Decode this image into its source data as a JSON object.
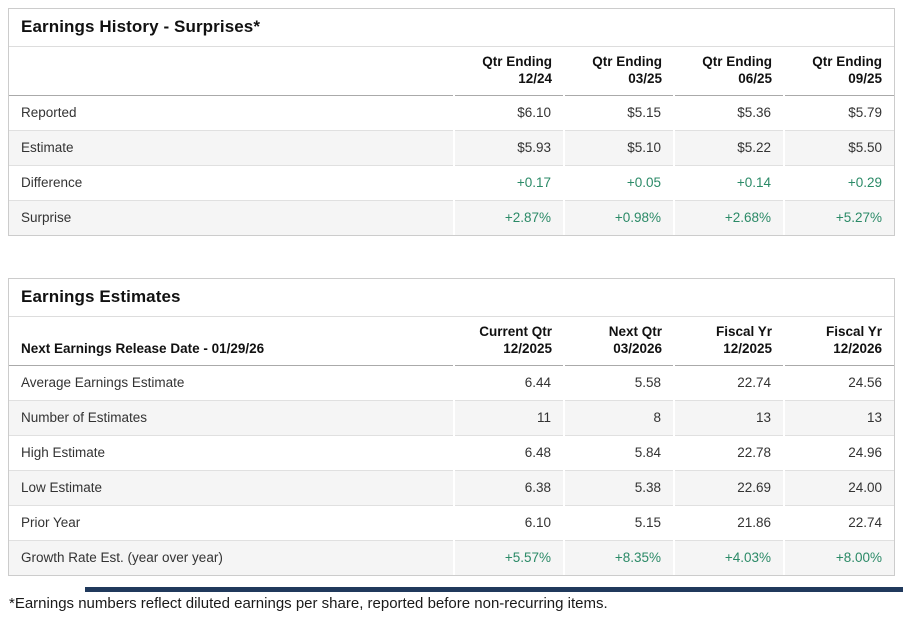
{
  "colors": {
    "positive_green": "#2b8a67",
    "row_alt_background": "#f5f5f5",
    "card_border": "#cccccc"
  },
  "surprises": {
    "title": "Earnings History - Surprises*",
    "columns": [
      {
        "line1": "Qtr Ending",
        "line2": "12/24"
      },
      {
        "line1": "Qtr Ending",
        "line2": "03/25"
      },
      {
        "line1": "Qtr Ending",
        "line2": "06/25"
      },
      {
        "line1": "Qtr Ending",
        "line2": "09/25"
      }
    ],
    "rows": [
      {
        "label": "Reported",
        "values": [
          "$6.10",
          "$5.15",
          "$5.36",
          "$5.79"
        ]
      },
      {
        "label": "Estimate",
        "values": [
          "$5.93",
          "$5.10",
          "$5.22",
          "$5.50"
        ]
      },
      {
        "label": "Difference",
        "values": [
          "+0.17",
          "+0.05",
          "+0.14",
          "+0.29"
        ]
      },
      {
        "label": "Surprise",
        "values": [
          "+2.87%",
          "+0.98%",
          "+2.68%",
          "+5.27%"
        ]
      }
    ]
  },
  "estimates": {
    "title": "Earnings Estimates",
    "release_date_label": "Next Earnings Release Date - 01/29/26",
    "columns": [
      {
        "line1": "Current Qtr",
        "line2": "12/2025"
      },
      {
        "line1": "Next Qtr",
        "line2": "03/2026"
      },
      {
        "line1": "Fiscal Yr",
        "line2": "12/2025"
      },
      {
        "line1": "Fiscal Yr",
        "line2": "12/2026"
      }
    ],
    "rows": [
      {
        "label": "Average Earnings Estimate",
        "values": [
          "6.44",
          "5.58",
          "22.74",
          "24.56"
        ]
      },
      {
        "label": "Number of Estimates",
        "values": [
          "11",
          "8",
          "13",
          "13"
        ]
      },
      {
        "label": "High Estimate",
        "values": [
          "6.48",
          "5.84",
          "22.78",
          "24.96"
        ]
      },
      {
        "label": "Low Estimate",
        "values": [
          "6.38",
          "5.38",
          "22.69",
          "24.00"
        ]
      },
      {
        "label": "Prior Year",
        "values": [
          "6.10",
          "5.15",
          "21.86",
          "22.74"
        ]
      },
      {
        "label": "Growth Rate Est. (year over year)",
        "values": [
          "+5.57%",
          "+8.35%",
          "+4.03%",
          "+8.00%"
        ]
      }
    ]
  },
  "footnote": "*Earnings numbers reflect diluted earnings per share, reported before non-recurring items."
}
